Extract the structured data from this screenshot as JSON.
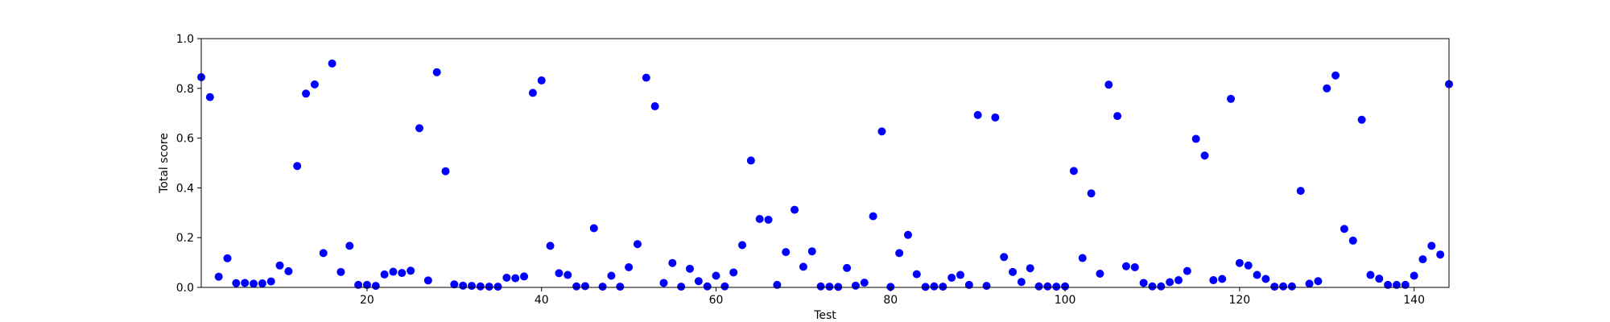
{
  "chart_data": {
    "type": "scatter",
    "xlabel": "Test",
    "ylabel": "Total score",
    "xlim": [
      1,
      144
    ],
    "ylim": [
      0,
      1.0
    ],
    "xticks": [
      20,
      40,
      60,
      80,
      100,
      120,
      140
    ],
    "yticks": [
      0.0,
      0.2,
      0.4,
      0.6,
      0.8,
      1.0
    ],
    "xtick_labels": [
      "20",
      "40",
      "60",
      "80",
      "100",
      "120",
      "140"
    ],
    "ytick_labels": [
      "0.0",
      "0.2",
      "0.4",
      "0.6",
      "0.8",
      "1.0"
    ],
    "grid": false,
    "marker_color": "#0000ff",
    "x": [
      1,
      2,
      3,
      4,
      5,
      6,
      7,
      8,
      9,
      10,
      11,
      12,
      13,
      14,
      15,
      16,
      17,
      18,
      19,
      20,
      21,
      22,
      23,
      24,
      25,
      26,
      27,
      28,
      29,
      30,
      31,
      32,
      33,
      34,
      35,
      36,
      37,
      38,
      39,
      40,
      41,
      42,
      43,
      44,
      45,
      46,
      47,
      48,
      49,
      50,
      51,
      52,
      53,
      54,
      55,
      56,
      57,
      58,
      59,
      60,
      61,
      62,
      63,
      64,
      65,
      66,
      67,
      68,
      69,
      70,
      71,
      72,
      73,
      74,
      75,
      76,
      77,
      78,
      79,
      80,
      81,
      82,
      83,
      84,
      85,
      86,
      87,
      88,
      89,
      90,
      91,
      92,
      93,
      94,
      95,
      96,
      97,
      98,
      99,
      100,
      101,
      102,
      103,
      104,
      105,
      106,
      107,
      108,
      109,
      110,
      111,
      112,
      113,
      114,
      115,
      116,
      117,
      118,
      119,
      120,
      121,
      122,
      123,
      124,
      125,
      126,
      127,
      128,
      129,
      130,
      131,
      132,
      133,
      134,
      135,
      136,
      137,
      138,
      139,
      140,
      141,
      142,
      143,
      144
    ],
    "y": [
      0.845,
      0.765,
      0.043,
      0.117,
      0.017,
      0.018,
      0.015,
      0.016,
      0.024,
      0.088,
      0.065,
      0.488,
      0.779,
      0.816,
      0.138,
      0.9,
      0.062,
      0.167,
      0.01,
      0.01,
      0.006,
      0.052,
      0.063,
      0.058,
      0.067,
      0.64,
      0.028,
      0.865,
      0.467,
      0.012,
      0.007,
      0.006,
      0.004,
      0.003,
      0.003,
      0.039,
      0.037,
      0.044,
      0.782,
      0.832,
      0.167,
      0.057,
      0.05,
      0.004,
      0.005,
      0.238,
      0.003,
      0.047,
      0.003,
      0.081,
      0.174,
      0.843,
      0.728,
      0.018,
      0.098,
      0.003,
      0.075,
      0.025,
      0.004,
      0.047,
      0.004,
      0.06,
      0.17,
      0.51,
      0.275,
      0.272,
      0.01,
      0.142,
      0.312,
      0.083,
      0.145,
      0.004,
      0.003,
      0.002,
      0.078,
      0.007,
      0.019,
      0.286,
      0.627,
      0.002,
      0.138,
      0.211,
      0.053,
      0.002,
      0.004,
      0.003,
      0.039,
      0.05,
      0.01,
      0.693,
      0.006,
      0.683,
      0.122,
      0.062,
      0.022,
      0.077,
      0.004,
      0.004,
      0.003,
      0.004,
      0.468,
      0.118,
      0.378,
      0.055,
      0.815,
      0.689,
      0.085,
      0.081,
      0.018,
      0.004,
      0.004,
      0.021,
      0.029,
      0.066,
      0.597,
      0.53,
      0.029,
      0.034,
      0.758,
      0.098,
      0.088,
      0.05,
      0.034,
      0.003,
      0.004,
      0.004,
      0.388,
      0.015,
      0.025,
      0.8,
      0.852,
      0.235,
      0.188,
      0.674,
      0.05,
      0.035,
      0.01,
      0.01,
      0.01,
      0.047,
      0.113,
      0.167,
      0.132,
      0.817
    ]
  }
}
